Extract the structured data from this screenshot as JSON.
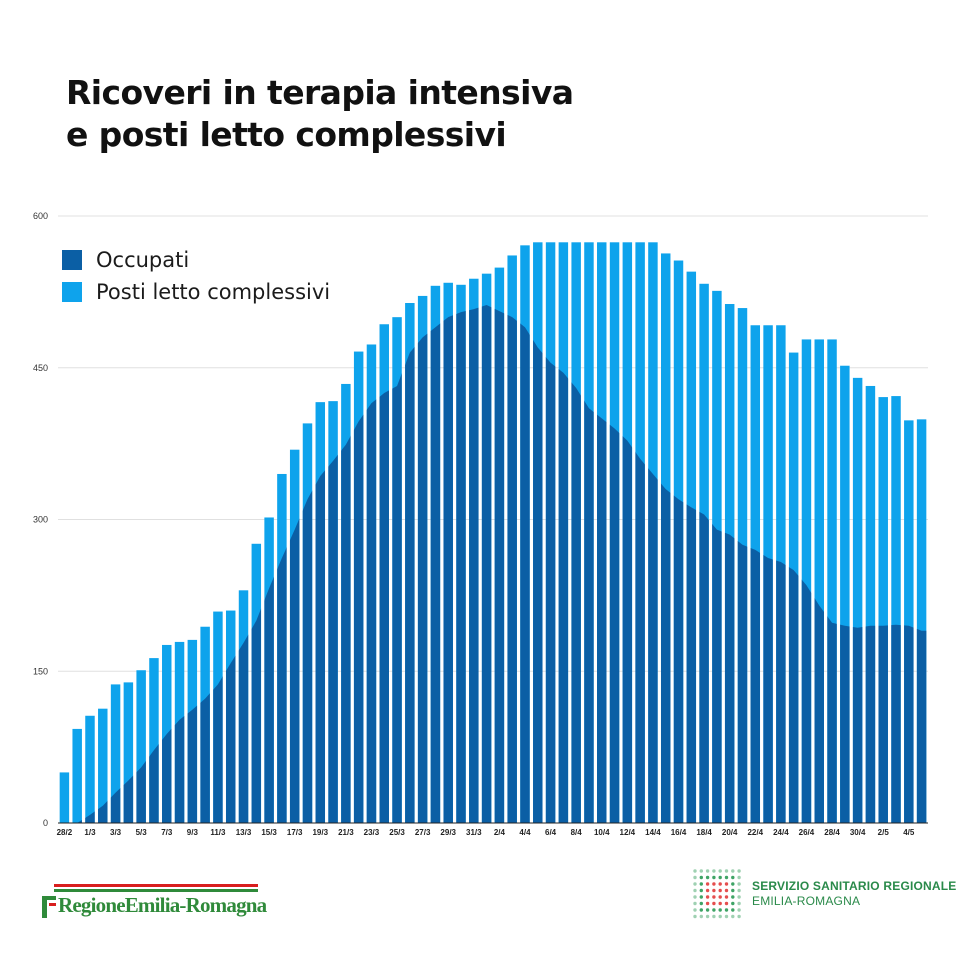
{
  "title": {
    "line1": "Ricoveri in terapia intensiva",
    "line2": "e posti letto complessivi"
  },
  "colors": {
    "occupati": "#0b5fa5",
    "posti": "#0ea3ec",
    "grid": "#e0e0e0",
    "axis": "#222222"
  },
  "footer": {
    "left_logo_text": "RegioneEmilia-Romagna",
    "right_line1": "SERVIZIO SANITARIO REGIONALE",
    "right_line2": "EMILIA-ROMAGNA"
  },
  "chart_data": {
    "type": "bar",
    "title": "Ricoveri in terapia intensiva e posti letto complessivi",
    "xlabel": "",
    "ylabel": "",
    "ylim": [
      0,
      600
    ],
    "yticks": [
      0,
      150,
      300,
      450,
      600
    ],
    "grid": true,
    "legend_position": "top-left",
    "categories": [
      "28/2",
      "29/2",
      "1/3",
      "2/3",
      "3/3",
      "4/3",
      "5/3",
      "6/3",
      "7/3",
      "8/3",
      "9/3",
      "10/3",
      "11/3",
      "12/3",
      "13/3",
      "14/3",
      "15/3",
      "16/3",
      "17/3",
      "18/3",
      "19/3",
      "20/3",
      "21/3",
      "22/3",
      "23/3",
      "24/3",
      "25/3",
      "26/3",
      "27/3",
      "28/3",
      "29/3",
      "30/3",
      "31/3",
      "1/4",
      "2/4",
      "3/4",
      "4/4",
      "5/4",
      "6/4",
      "7/4",
      "8/4",
      "9/4",
      "10/4",
      "11/4",
      "12/4",
      "13/4",
      "14/4",
      "15/4",
      "16/4",
      "17/4",
      "18/4",
      "19/4",
      "20/4",
      "21/4",
      "22/4",
      "23/4",
      "24/4",
      "25/4",
      "26/4",
      "27/4",
      "28/4",
      "29/4",
      "30/4",
      "1/5",
      "2/5",
      "3/5",
      "4/5",
      "5/5"
    ],
    "xtick_labels": [
      "28/2",
      "1/3",
      "3/3",
      "5/3",
      "7/3",
      "9/3",
      "11/3",
      "13/3",
      "15/3",
      "17/3",
      "19/3",
      "21/3",
      "23/3",
      "25/3",
      "27/3",
      "29/3",
      "31/3",
      "2/4",
      "4/4",
      "6/4",
      "8/4",
      "10/4",
      "12/4",
      "14/4",
      "16/4",
      "18/4",
      "20/4",
      "22/4",
      "24/4",
      "26/4",
      "28/4",
      "30/4",
      "2/5",
      "4/5"
    ],
    "series": [
      {
        "name": "Occupati",
        "values": [
          0,
          0,
          8,
          17,
          30,
          42,
          55,
          72,
          88,
          102,
          112,
          123,
          137,
          158,
          178,
          200,
          232,
          262,
          290,
          320,
          343,
          358,
          374,
          397,
          415,
          425,
          432,
          465,
          480,
          490,
          500,
          505,
          508,
          512,
          506,
          500,
          490,
          470,
          455,
          445,
          430,
          410,
          400,
          390,
          378,
          360,
          345,
          330,
          320,
          312,
          305,
          290,
          285,
          275,
          270,
          262,
          258,
          250,
          235,
          215,
          198,
          195,
          193,
          195,
          195,
          196,
          195,
          190
        ]
      },
      {
        "name": "Posti letto complessivi",
        "values": [
          50,
          93,
          106,
          113,
          137,
          139,
          151,
          163,
          176,
          179,
          181,
          194,
          209,
          210,
          230,
          276,
          302,
          345,
          369,
          395,
          416,
          417,
          434,
          466,
          473,
          493,
          500,
          514,
          521,
          531,
          534,
          532,
          538,
          543,
          549,
          561,
          571,
          574,
          574,
          574,
          574,
          574,
          574,
          574,
          574,
          574,
          574,
          563,
          556,
          545,
          533,
          526,
          513,
          509,
          492,
          492,
          492,
          465,
          478,
          478,
          478,
          452,
          440,
          432,
          421,
          422,
          398,
          399
        ]
      }
    ]
  }
}
